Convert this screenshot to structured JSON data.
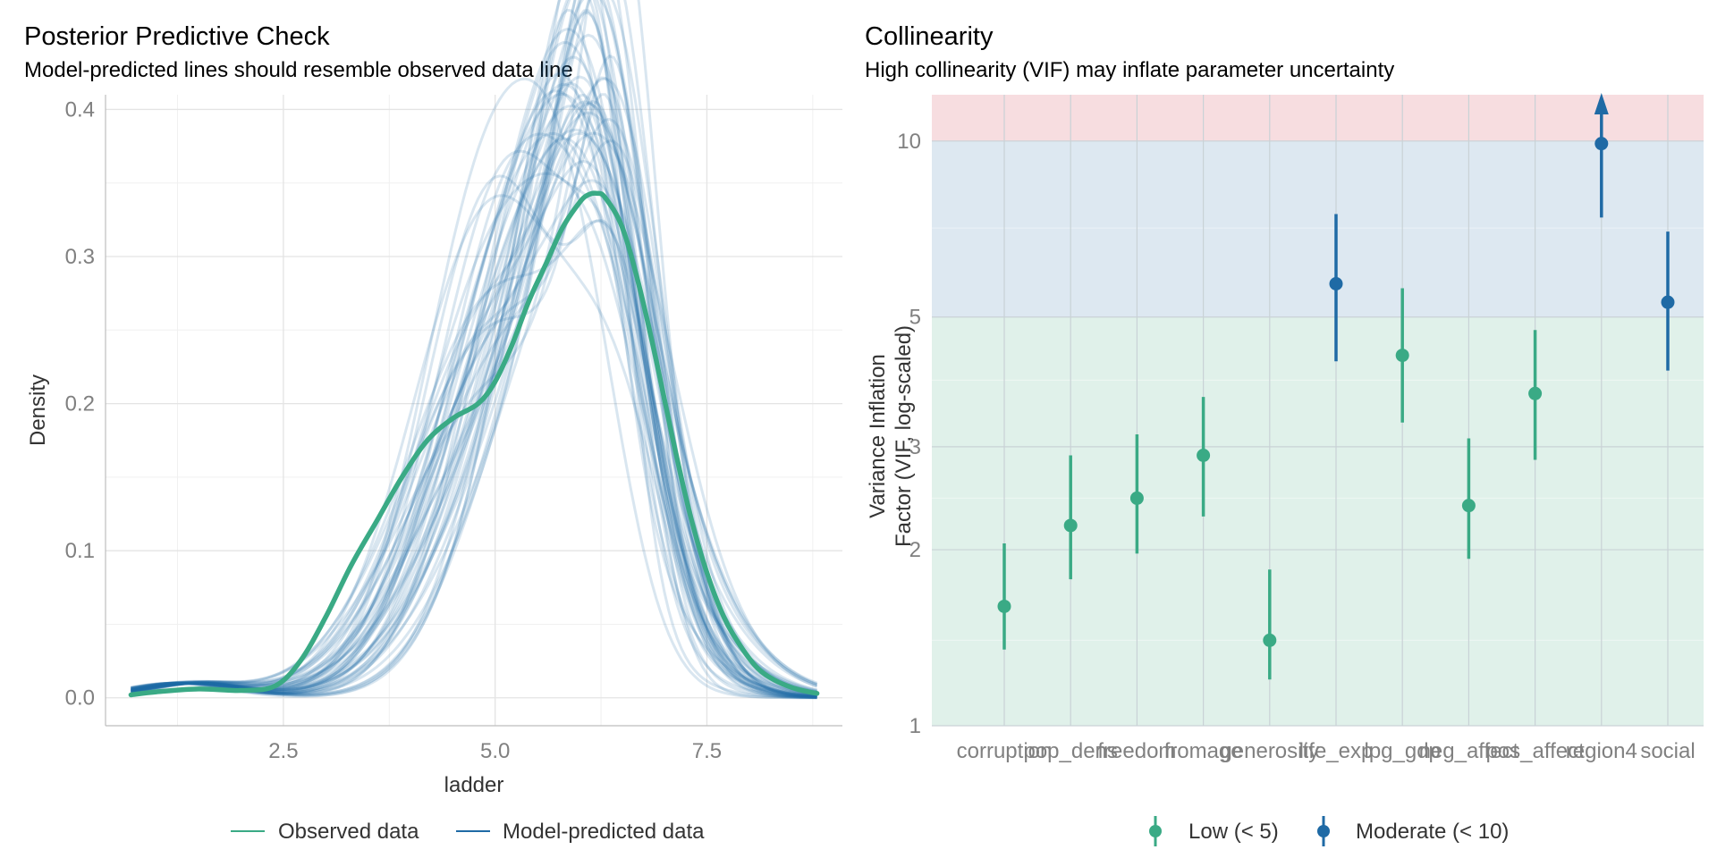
{
  "chart_data": [
    {
      "type": "line",
      "title": "Posterior Predictive Check",
      "subtitle": "Model-predicted lines should resemble observed data line",
      "xlabel": "ladder",
      "ylabel": "Density",
      "xlim": [
        0.4,
        9.1
      ],
      "ylim": [
        -0.019,
        0.41
      ],
      "x_ticks": [
        2.5,
        5.0,
        7.5
      ],
      "x_tick_labels": [
        "2.5",
        "5.0",
        "7.5"
      ],
      "y_ticks": [
        0.0,
        0.1,
        0.2,
        0.3,
        0.4
      ],
      "y_tick_labels": [
        "0.0",
        "0.1",
        "0.2",
        "0.3",
        "0.4"
      ],
      "grid": true,
      "legend_position": "bottom",
      "legend": [
        "Observed data",
        "Model-predicted data"
      ],
      "colors": {
        "observed": "#3aaa85",
        "predicted": "#1f6aa5"
      },
      "observed": {
        "name": "Observed data",
        "x": [
          0.7,
          1.0,
          1.5,
          2.0,
          2.4,
          2.7,
          3.0,
          3.3,
          3.6,
          3.9,
          4.2,
          4.5,
          4.8,
          5.0,
          5.2,
          5.4,
          5.6,
          5.8,
          6.0,
          6.1,
          6.2,
          6.3,
          6.5,
          6.7,
          6.9,
          7.1,
          7.3,
          7.5,
          7.7,
          7.9,
          8.1,
          8.3,
          8.5,
          8.7,
          8.8
        ],
        "y": [
          0.002,
          0.004,
          0.006,
          0.005,
          0.008,
          0.025,
          0.055,
          0.09,
          0.12,
          0.15,
          0.175,
          0.19,
          0.2,
          0.215,
          0.24,
          0.27,
          0.295,
          0.32,
          0.337,
          0.342,
          0.343,
          0.34,
          0.32,
          0.28,
          0.23,
          0.175,
          0.125,
          0.085,
          0.055,
          0.035,
          0.02,
          0.012,
          0.007,
          0.004,
          0.003
        ]
      },
      "predicted": {
        "name": "Model-predicted data",
        "n_draws": 50,
        "approx_peak_x_range": [
          5.4,
          6.4
        ],
        "approx_peak_y_range": [
          0.23,
          0.385
        ]
      }
    },
    {
      "type": "scatter",
      "title": "Collinearity",
      "subtitle": "High collinearity (VIF) may inflate parameter uncertainty",
      "ylabel": "Variance Inflation Factor (VIF, log-scaled)",
      "ylabel_lines": [
        "Variance Inflation",
        "Factor (VIF, log-scaled)"
      ],
      "y_scale": "log",
      "ylim": [
        1,
        12
      ],
      "y_ticks": [
        1,
        2,
        3,
        5,
        10
      ],
      "y_tick_labels": [
        "1",
        "2",
        "3",
        "5",
        "10"
      ],
      "categories": [
        "corruption",
        "pop_dens",
        "freedom",
        "fromage",
        "generosity",
        "life_exp",
        "lpg_gdp",
        "neg_affect",
        "pos_affect",
        "region4",
        "social"
      ],
      "vif": [
        1.6,
        2.2,
        2.45,
        2.9,
        1.4,
        5.7,
        4.3,
        2.38,
        3.7,
        9.9,
        5.3
      ],
      "ci_low": [
        1.35,
        1.78,
        1.97,
        2.28,
        1.2,
        4.2,
        3.3,
        1.93,
        2.85,
        7.4,
        4.05
      ],
      "ci_high": [
        2.05,
        2.9,
        3.15,
        3.65,
        1.85,
        7.5,
        5.6,
        3.1,
        4.75,
        11.0,
        7.0
      ],
      "groups": [
        "Low (< 5)",
        "Low (< 5)",
        "Low (< 5)",
        "Low (< 5)",
        "Low (< 5)",
        "Moderate (< 10)",
        "Low (< 5)",
        "Low (< 5)",
        "Low (< 5)",
        "Moderate (< 10)",
        "Moderate (< 10)"
      ],
      "truncated_up": [
        false,
        false,
        false,
        false,
        false,
        false,
        false,
        false,
        false,
        true,
        false
      ],
      "bands": [
        {
          "from": 1,
          "to": 5,
          "color": "#e0f1ea"
        },
        {
          "from": 5,
          "to": 10,
          "color": "#dde8f1"
        },
        {
          "from": 10,
          "to": 12,
          "color": "#f7dde0"
        }
      ],
      "legend": [
        "Low (< 5)",
        "Moderate (< 10)"
      ],
      "colors": {
        "low": "#3aaa85",
        "moderate": "#1f6aa5"
      },
      "legend_position": "bottom",
      "grid": true
    }
  ]
}
